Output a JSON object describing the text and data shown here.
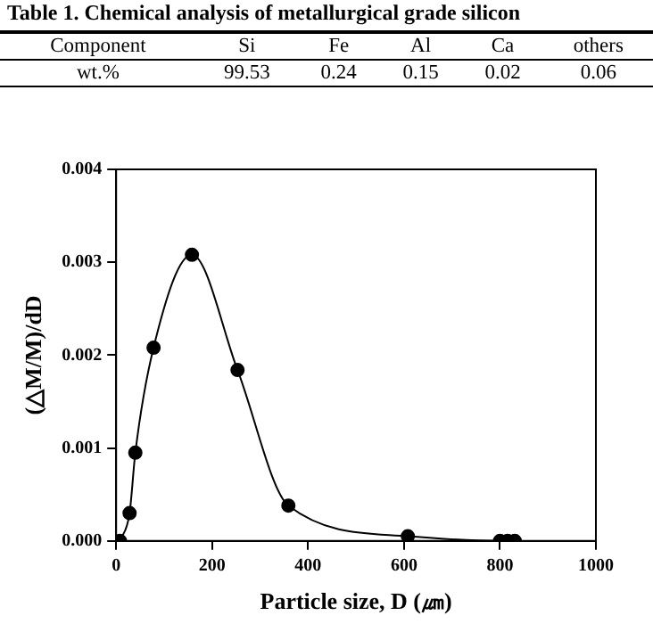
{
  "chart_data": [
    {
      "type": "other",
      "title": "Table 1. Chemical analysis of metallurgical grade silicon",
      "xlabel": "Component",
      "ylabel": "wt.%",
      "categories": [
        "Si",
        "Fe",
        "Al",
        "Ca",
        "others"
      ],
      "values": [
        99.53,
        0.24,
        0.15,
        0.02,
        0.06
      ],
      "data_labels": true
    },
    {
      "type": "line",
      "xlabel": "Particle size, D (㎛)",
      "ylabel": "(△M/M)/dD",
      "marker": "circle",
      "series": [
        {
          "color": "#000000",
          "x": [
            8,
            28,
            40,
            78,
            158,
            253,
            359,
            608,
            800,
            816,
            831
          ],
          "values": [
            0,
            0.0003,
            0.00095,
            0.00208,
            0.00308,
            0.00184,
            0.00038,
            5e-05,
            0,
            0,
            0
          ]
        }
      ],
      "xlim": [
        0,
        1000
      ],
      "xticks": [
        0,
        200,
        400,
        600,
        800,
        1000
      ],
      "ylim": [
        0,
        0.004
      ],
      "yticks": [
        {
          "value": 0,
          "label": "0.000"
        },
        {
          "value": 0.001,
          "label": "0.001"
        },
        {
          "value": 0.002,
          "label": "0.002"
        },
        {
          "value": 0.003,
          "label": "0.003"
        },
        {
          "value": 0.004,
          "label": "0.004"
        }
      ],
      "legend": false
    }
  ]
}
